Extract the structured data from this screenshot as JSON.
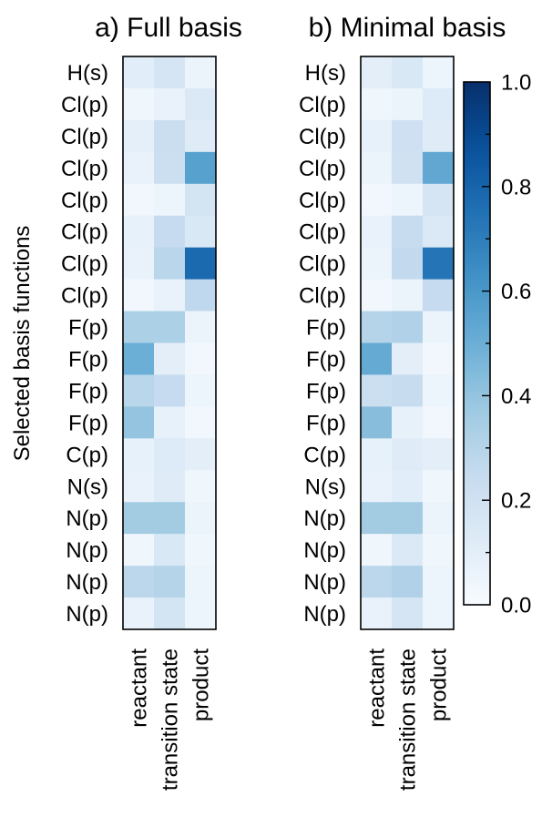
{
  "chart_data": {
    "type": "heatmap",
    "ylabel": "Selected basis functions",
    "panels": [
      {
        "title": "a) Full basis",
        "columns": [
          "reactant",
          "transition state",
          "product"
        ],
        "rows": [
          "H(s)",
          "Cl(p)",
          "Cl(p)",
          "Cl(p)",
          "Cl(p)",
          "Cl(p)",
          "Cl(p)",
          "Cl(p)",
          "F(p)",
          "F(p)",
          "F(p)",
          "F(p)",
          "C(p)",
          "N(s)",
          "N(p)",
          "N(p)",
          "N(p)",
          "N(p)"
        ],
        "values": [
          [
            0.11,
            0.17,
            0.06
          ],
          [
            0.04,
            0.07,
            0.14
          ],
          [
            0.09,
            0.23,
            0.12
          ],
          [
            0.07,
            0.22,
            0.56
          ],
          [
            0.03,
            0.05,
            0.18
          ],
          [
            0.08,
            0.25,
            0.15
          ],
          [
            0.07,
            0.29,
            0.78
          ],
          [
            0.03,
            0.07,
            0.27
          ],
          [
            0.33,
            0.33,
            0.06
          ],
          [
            0.5,
            0.1,
            0.03
          ],
          [
            0.29,
            0.25,
            0.05
          ],
          [
            0.4,
            0.08,
            0.03
          ],
          [
            0.08,
            0.13,
            0.1
          ],
          [
            0.07,
            0.12,
            0.04
          ],
          [
            0.36,
            0.36,
            0.06
          ],
          [
            0.04,
            0.15,
            0.04
          ],
          [
            0.28,
            0.3,
            0.05
          ],
          [
            0.07,
            0.18,
            0.05
          ]
        ]
      },
      {
        "title": "b) Minimal basis",
        "columns": [
          "reactant",
          "transition state",
          "product"
        ],
        "rows": [
          "H(s)",
          "Cl(p)",
          "Cl(p)",
          "Cl(p)",
          "Cl(p)",
          "Cl(p)",
          "Cl(p)",
          "Cl(p)",
          "F(p)",
          "F(p)",
          "F(p)",
          "F(p)",
          "C(p)",
          "N(s)",
          "N(p)",
          "N(p)",
          "N(p)",
          "N(p)"
        ],
        "values": [
          [
            0.1,
            0.15,
            0.05
          ],
          [
            0.04,
            0.06,
            0.13
          ],
          [
            0.08,
            0.21,
            0.12
          ],
          [
            0.06,
            0.2,
            0.53
          ],
          [
            0.03,
            0.05,
            0.17
          ],
          [
            0.07,
            0.24,
            0.14
          ],
          [
            0.06,
            0.26,
            0.74
          ],
          [
            0.03,
            0.06,
            0.25
          ],
          [
            0.3,
            0.32,
            0.06
          ],
          [
            0.52,
            0.1,
            0.03
          ],
          [
            0.22,
            0.24,
            0.05
          ],
          [
            0.43,
            0.08,
            0.03
          ],
          [
            0.08,
            0.12,
            0.1
          ],
          [
            0.07,
            0.11,
            0.04
          ],
          [
            0.36,
            0.36,
            0.06
          ],
          [
            0.04,
            0.14,
            0.04
          ],
          [
            0.28,
            0.32,
            0.05
          ],
          [
            0.07,
            0.17,
            0.05
          ]
        ]
      }
    ],
    "colorbar": {
      "range": [
        0.0,
        1.0
      ],
      "ticks": [
        "0.0",
        "0.2",
        "0.4",
        "0.6",
        "0.8",
        "1.0"
      ],
      "colormap": "Blues",
      "low_color": "#f7fbff",
      "high_color": "#08306b"
    }
  }
}
